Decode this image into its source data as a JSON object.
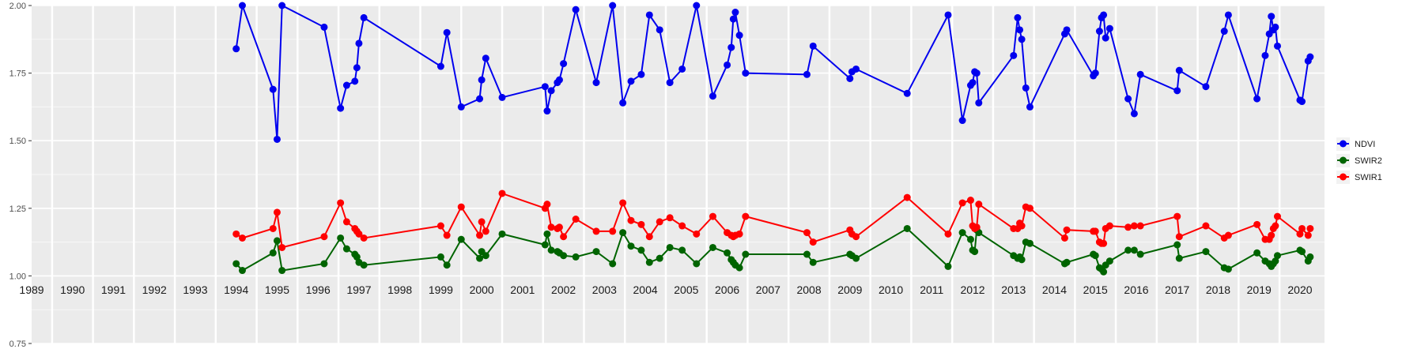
{
  "chart_data": {
    "type": "line",
    "title": "",
    "xlabel": "",
    "ylabel": "",
    "ylim": [
      0.75,
      2.0
    ],
    "yticks": [
      "0.75",
      "1.00",
      "1.25",
      "1.50",
      "1.75",
      "2.00"
    ],
    "year_labels": [
      "1989",
      "1990",
      "1991",
      "1992",
      "1993",
      "1994",
      "1995",
      "1996",
      "1997",
      "1998",
      "1999",
      "2000",
      "2001",
      "2002",
      "2003",
      "2004",
      "2005",
      "2006",
      "2007",
      "2008",
      "2009",
      "2010",
      "2011",
      "2012",
      "2013",
      "2014",
      "2015",
      "2016",
      "2017",
      "2018",
      "2019",
      "2020"
    ],
    "xlim": [
      1989.0,
      2020.6
    ],
    "grid": true,
    "background": "#ebebeb",
    "legend_position": "right",
    "series": [
      {
        "name": "NDVI",
        "color": "#0000ee",
        "x": [
          1994.0,
          1994.15,
          1994.9,
          1995.0,
          1995.12,
          1996.15,
          1996.55,
          1996.7,
          1996.9,
          1996.95,
          1997.0,
          1997.12,
          1999.0,
          1999.15,
          1999.5,
          1999.95,
          2000.0,
          2000.1,
          2000.5,
          2001.55,
          2001.6,
          2001.7,
          2001.85,
          2001.9,
          2002.0,
          2002.3,
          2002.8,
          2003.2,
          2003.45,
          2003.65,
          2003.9,
          2004.1,
          2004.35,
          2004.6,
          2004.9,
          2005.25,
          2005.65,
          2006.0,
          2006.1,
          2006.15,
          2006.2,
          2006.3,
          2006.45,
          2007.95,
          2008.1,
          2009.0,
          2009.05,
          2009.15,
          2010.4,
          2011.4,
          2011.75,
          2011.95,
          2012.0,
          2012.05,
          2012.1,
          2012.15,
          2013.0,
          2013.1,
          2013.15,
          2013.2,
          2013.3,
          2013.4,
          2014.25,
          2014.3,
          2014.95,
          2015.0,
          2015.1,
          2015.15,
          2015.2,
          2015.25,
          2015.35,
          2015.8,
          2015.95,
          2016.1,
          2017.0,
          2017.05,
          2017.7,
          2018.15,
          2018.25,
          2018.95,
          2019.15,
          2019.25,
          2019.3,
          2019.35,
          2019.4,
          2019.45,
          2020.0,
          2020.05,
          2020.2,
          2020.25
        ],
        "y": [
          1.84,
          2.0,
          1.69,
          1.505,
          2.0,
          1.92,
          1.62,
          1.705,
          1.72,
          1.77,
          1.86,
          1.955,
          1.775,
          1.9,
          1.625,
          1.655,
          1.725,
          1.805,
          1.66,
          1.7,
          1.61,
          1.685,
          1.715,
          1.725,
          1.785,
          1.985,
          1.715,
          2.0,
          1.64,
          1.72,
          1.745,
          1.965,
          1.91,
          1.715,
          1.765,
          2.0,
          1.665,
          1.78,
          1.845,
          1.95,
          1.975,
          1.89,
          1.75,
          1.745,
          1.85,
          1.73,
          1.755,
          1.765,
          1.675,
          1.965,
          1.575,
          1.705,
          1.715,
          1.755,
          1.75,
          1.64,
          1.815,
          1.955,
          1.91,
          1.875,
          1.695,
          1.625,
          1.895,
          1.91,
          1.74,
          1.75,
          1.905,
          1.955,
          1.965,
          1.88,
          1.915,
          1.655,
          1.6,
          1.745,
          1.685,
          1.76,
          1.7,
          1.905,
          1.965,
          1.655,
          1.815,
          1.895,
          1.96,
          1.91,
          1.92,
          1.85,
          1.65,
          1.645,
          1.795,
          1.81
        ]
      },
      {
        "name": "SWIR2",
        "color": "#006400",
        "x": [
          1994.0,
          1994.15,
          1994.9,
          1995.0,
          1995.12,
          1996.15,
          1996.55,
          1996.7,
          1996.9,
          1996.95,
          1997.0,
          1997.12,
          1999.0,
          1999.15,
          1999.5,
          1999.95,
          2000.0,
          2000.1,
          2000.5,
          2001.55,
          2001.6,
          2001.7,
          2001.85,
          2001.9,
          2002.0,
          2002.3,
          2002.8,
          2003.2,
          2003.45,
          2003.65,
          2003.9,
          2004.1,
          2004.35,
          2004.6,
          2004.9,
          2005.25,
          2005.65,
          2006.0,
          2006.1,
          2006.15,
          2006.2,
          2006.3,
          2006.45,
          2007.95,
          2008.1,
          2009.0,
          2009.05,
          2009.15,
          2010.4,
          2011.4,
          2011.75,
          2011.95,
          2012.0,
          2012.05,
          2012.1,
          2012.15,
          2013.0,
          2013.1,
          2013.15,
          2013.2,
          2013.3,
          2013.4,
          2014.25,
          2014.3,
          2014.95,
          2015.0,
          2015.1,
          2015.15,
          2015.2,
          2015.25,
          2015.35,
          2015.8,
          2015.95,
          2016.1,
          2017.0,
          2017.05,
          2017.7,
          2018.15,
          2018.25,
          2018.95,
          2019.15,
          2019.25,
          2019.3,
          2019.35,
          2019.4,
          2019.45,
          2020.0,
          2020.05,
          2020.2,
          2020.25
        ],
        "y": [
          1.045,
          1.02,
          1.085,
          1.13,
          1.02,
          1.045,
          1.14,
          1.1,
          1.08,
          1.07,
          1.05,
          1.04,
          1.07,
          1.04,
          1.135,
          1.065,
          1.09,
          1.075,
          1.155,
          1.115,
          1.155,
          1.095,
          1.09,
          1.085,
          1.075,
          1.07,
          1.09,
          1.045,
          1.16,
          1.11,
          1.095,
          1.05,
          1.065,
          1.105,
          1.095,
          1.045,
          1.105,
          1.085,
          1.06,
          1.05,
          1.04,
          1.03,
          1.08,
          1.08,
          1.05,
          1.08,
          1.075,
          1.065,
          1.175,
          1.035,
          1.16,
          1.135,
          1.095,
          1.09,
          1.17,
          1.16,
          1.075,
          1.065,
          1.07,
          1.06,
          1.125,
          1.12,
          1.045,
          1.05,
          1.08,
          1.075,
          1.03,
          1.025,
          1.015,
          1.04,
          1.055,
          1.095,
          1.095,
          1.08,
          1.115,
          1.065,
          1.09,
          1.03,
          1.025,
          1.085,
          1.055,
          1.045,
          1.035,
          1.045,
          1.055,
          1.075,
          1.095,
          1.09,
          1.055,
          1.07
        ]
      },
      {
        "name": "SWIR1",
        "color": "#ff0000",
        "x": [
          1994.0,
          1994.15,
          1994.9,
          1995.0,
          1995.12,
          1996.15,
          1996.55,
          1996.7,
          1996.9,
          1996.95,
          1997.0,
          1997.12,
          1999.0,
          1999.15,
          1999.5,
          1999.95,
          2000.0,
          2000.1,
          2000.5,
          2001.55,
          2001.6,
          2001.7,
          2001.85,
          2001.9,
          2002.0,
          2002.3,
          2002.8,
          2003.2,
          2003.45,
          2003.65,
          2003.9,
          2004.1,
          2004.35,
          2004.6,
          2004.9,
          2005.25,
          2005.65,
          2006.0,
          2006.1,
          2006.15,
          2006.2,
          2006.3,
          2006.45,
          2007.95,
          2008.1,
          2009.0,
          2009.05,
          2009.15,
          2010.4,
          2011.4,
          2011.75,
          2011.95,
          2012.0,
          2012.05,
          2012.1,
          2012.15,
          2013.0,
          2013.1,
          2013.15,
          2013.2,
          2013.3,
          2013.4,
          2014.25,
          2014.3,
          2014.95,
          2015.0,
          2015.1,
          2015.15,
          2015.2,
          2015.25,
          2015.35,
          2015.8,
          2015.95,
          2016.1,
          2017.0,
          2017.05,
          2017.7,
          2018.15,
          2018.25,
          2018.95,
          2019.15,
          2019.25,
          2019.3,
          2019.35,
          2019.4,
          2019.45,
          2020.0,
          2020.05,
          2020.2,
          2020.25
        ],
        "y": [
          1.155,
          1.14,
          1.175,
          1.235,
          1.105,
          1.145,
          1.27,
          1.2,
          1.175,
          1.165,
          1.155,
          1.14,
          1.185,
          1.15,
          1.255,
          1.15,
          1.2,
          1.165,
          1.305,
          1.25,
          1.265,
          1.18,
          1.175,
          1.18,
          1.145,
          1.21,
          1.165,
          1.165,
          1.27,
          1.205,
          1.19,
          1.145,
          1.2,
          1.215,
          1.185,
          1.155,
          1.22,
          1.16,
          1.15,
          1.145,
          1.15,
          1.155,
          1.22,
          1.16,
          1.125,
          1.17,
          1.155,
          1.145,
          1.29,
          1.155,
          1.27,
          1.28,
          1.185,
          1.175,
          1.18,
          1.265,
          1.175,
          1.175,
          1.195,
          1.185,
          1.255,
          1.25,
          1.14,
          1.17,
          1.165,
          1.165,
          1.125,
          1.12,
          1.12,
          1.175,
          1.185,
          1.18,
          1.185,
          1.185,
          1.22,
          1.145,
          1.185,
          1.14,
          1.15,
          1.19,
          1.135,
          1.135,
          1.15,
          1.175,
          1.185,
          1.22,
          1.155,
          1.175,
          1.15,
          1.175
        ]
      }
    ]
  }
}
